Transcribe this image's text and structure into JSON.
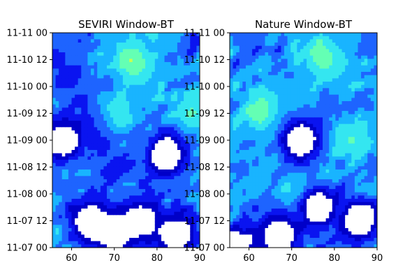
{
  "chart_data": [
    {
      "type": "heatmap",
      "title": "SEVIRI Window-BT",
      "xlabel": "",
      "ylabel": "",
      "xlim": [
        55.5,
        90.0
      ],
      "x_ticks": [
        60,
        70,
        80,
        90
      ],
      "x_tick_labels": [
        "60",
        "70",
        "80",
        "90"
      ],
      "ylim": [
        "11-07 00",
        "11-11 00"
      ],
      "y_ticks": [
        "11-07 00",
        "11-07 12",
        "11-08 00",
        "11-08 12",
        "11-09 00",
        "11-09 12",
        "11-10 00",
        "11-10 12",
        "11-11 00"
      ],
      "y_tick_labels": [
        "11-07 00",
        "11-07 12",
        "11-08 00",
        "11-08 12",
        "11-09 00",
        "11-09 12",
        "11-10 00",
        "11-10 12",
        "11-11 00"
      ],
      "colormap_levels": [
        "#ffffff",
        "#0000c8",
        "#0a14f0",
        "#1e64ff",
        "#19b4ff",
        "#34e6f0",
        "#64ffb4",
        "#c8ff50"
      ],
      "legend": "none",
      "grid": false,
      "features": [
        {
          "kind": "bright_band",
          "x_start": 68,
          "y_start": "11-09 00",
          "x_end": 80,
          "y_end": "11-11 00",
          "level": 4
        },
        {
          "kind": "bright_spot",
          "x": 74,
          "y": "11-10 12",
          "level": 6
        },
        {
          "kind": "bright_spot",
          "x": 70,
          "y": "11-09 12",
          "level": 5
        },
        {
          "kind": "bright_spot",
          "x": 88,
          "y": "11-09 12",
          "level": 5
        },
        {
          "kind": "bright_spot",
          "x": 79,
          "y": "11-11 00",
          "level": 4
        },
        {
          "kind": "clear_patch",
          "x": 58,
          "y": "11-09 00",
          "level": 0
        },
        {
          "kind": "clear_patch",
          "x": 82,
          "y": "11-08 18",
          "level": 0
        },
        {
          "kind": "clear_patch",
          "x": 64,
          "y": "11-07 12",
          "level": 0
        },
        {
          "kind": "clear_patch",
          "x": 76,
          "y": "11-07 12",
          "level": 0
        },
        {
          "kind": "clear_patch",
          "x": 70,
          "y": "11-07 06",
          "level": 0
        },
        {
          "kind": "clear_patch",
          "x": 85,
          "y": "11-07 06",
          "level": 0
        },
        {
          "kind": "dark_band",
          "x_start": 58,
          "y_start": "11-10 12",
          "x_end": 70,
          "y_end": "11-08 12",
          "level": 1
        }
      ]
    },
    {
      "type": "heatmap",
      "title": "Nature Window-BT",
      "xlabel": "",
      "ylabel": "",
      "xlim": [
        55.5,
        90.0
      ],
      "x_ticks": [
        60,
        70,
        80,
        90
      ],
      "x_tick_labels": [
        "60",
        "70",
        "80",
        "90"
      ],
      "ylim": [
        "11-07 00",
        "11-11 00"
      ],
      "y_ticks": [
        "11-07 00",
        "11-07 12",
        "11-08 00",
        "11-08 12",
        "11-09 00",
        "11-09 12",
        "11-10 00",
        "11-10 12",
        "11-11 00"
      ],
      "y_tick_labels": [
        "11-07 00",
        "11-07 12",
        "11-08 00",
        "11-08 12",
        "11-09 00",
        "11-09 12",
        "11-10 00",
        "11-10 12",
        "11-11 00"
      ],
      "colormap_levels": [
        "#ffffff",
        "#0000c8",
        "#0a14f0",
        "#1e64ff",
        "#19b4ff",
        "#34e6f0",
        "#64ffb4",
        "#c8ff50"
      ],
      "legend": "none",
      "grid": false,
      "features": [
        {
          "kind": "bright_spot",
          "x": 78,
          "y": "11-10 12",
          "level": 7
        },
        {
          "kind": "bright_spot",
          "x": 63,
          "y": "11-09 12",
          "level": 6
        },
        {
          "kind": "bright_band",
          "x_start": 60,
          "y_start": "11-08 12",
          "x_end": 85,
          "y_end": "11-11 00",
          "level": 4
        },
        {
          "kind": "bright_spot",
          "x": 72,
          "y": "11-08 00",
          "level": 5
        },
        {
          "kind": "bright_spot",
          "x": 84,
          "y": "11-09 00",
          "level": 5
        },
        {
          "kind": "clear_patch",
          "x": 76,
          "y": "11-07 18",
          "level": 0
        },
        {
          "kind": "clear_patch",
          "x": 86,
          "y": "11-07 12",
          "level": 0
        },
        {
          "kind": "clear_patch",
          "x": 67,
          "y": "11-07 06",
          "level": 0
        },
        {
          "kind": "clear_patch",
          "x": 72,
          "y": "11-09 00",
          "level": 0
        },
        {
          "kind": "clear_patch",
          "x": 57,
          "y": "11-07 00",
          "level": 0
        }
      ]
    }
  ]
}
